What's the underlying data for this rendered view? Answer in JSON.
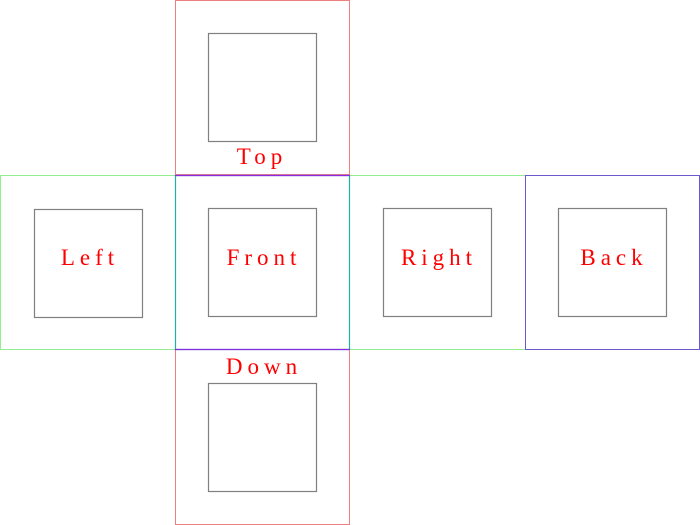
{
  "diagram": {
    "faces": [
      {
        "id": "top",
        "label": "Top",
        "border_color": "#f08080"
      },
      {
        "id": "left",
        "label": "Left",
        "border_color": "#90ee90"
      },
      {
        "id": "front",
        "label": "Front",
        "border_color": "#8a2be2"
      },
      {
        "id": "right",
        "label": "Right",
        "border_color": "#90ee90"
      },
      {
        "id": "back",
        "label": "Back",
        "border_color": "#6a5acd"
      },
      {
        "id": "down",
        "label": "Down",
        "border_color": "#f08080"
      }
    ],
    "label_color": "#ff0000",
    "inner_square_color": "#808080",
    "front_inner_border_color": "#20b2aa"
  }
}
